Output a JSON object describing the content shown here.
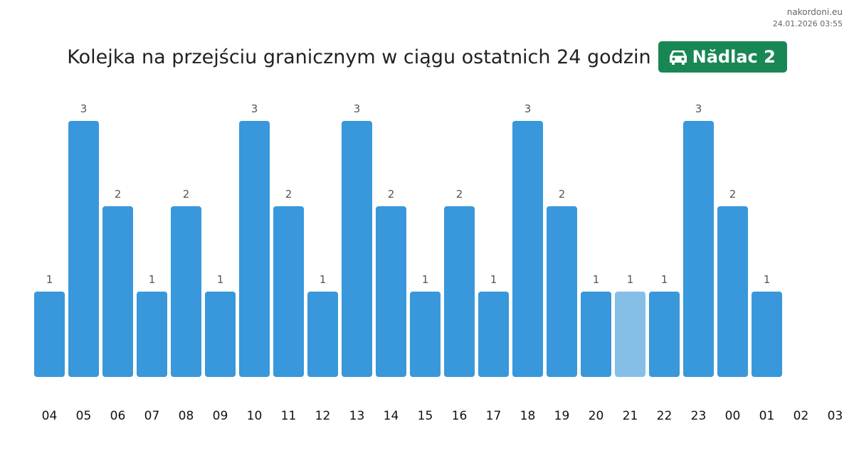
{
  "site": "nakordoni.eu",
  "timestamp": "24.01.2026 03:55",
  "title": "Kolejka na przejściu granicznym w ciągu ostatnich 24 godzin",
  "badge": {
    "icon": "car-icon",
    "label": "Nădlac 2",
    "color": "#198754"
  },
  "colors": {
    "bar": "#3898db",
    "bar_highlight": "#85bfe8"
  },
  "chart_data": {
    "type": "bar",
    "categories": [
      "04",
      "05",
      "06",
      "07",
      "08",
      "09",
      "10",
      "11",
      "12",
      "13",
      "14",
      "15",
      "16",
      "17",
      "18",
      "19",
      "20",
      "21",
      "22",
      "23",
      "00",
      "01",
      "02",
      "03"
    ],
    "values": [
      1,
      3,
      2,
      1,
      2,
      1,
      3,
      2,
      1,
      3,
      2,
      1,
      2,
      1,
      3,
      2,
      1,
      1,
      1,
      3,
      2,
      1,
      null,
      null
    ],
    "highlight_category": "21",
    "ylim": [
      0,
      3
    ],
    "grid": false,
    "title": "",
    "xlabel": "",
    "ylabel": ""
  }
}
